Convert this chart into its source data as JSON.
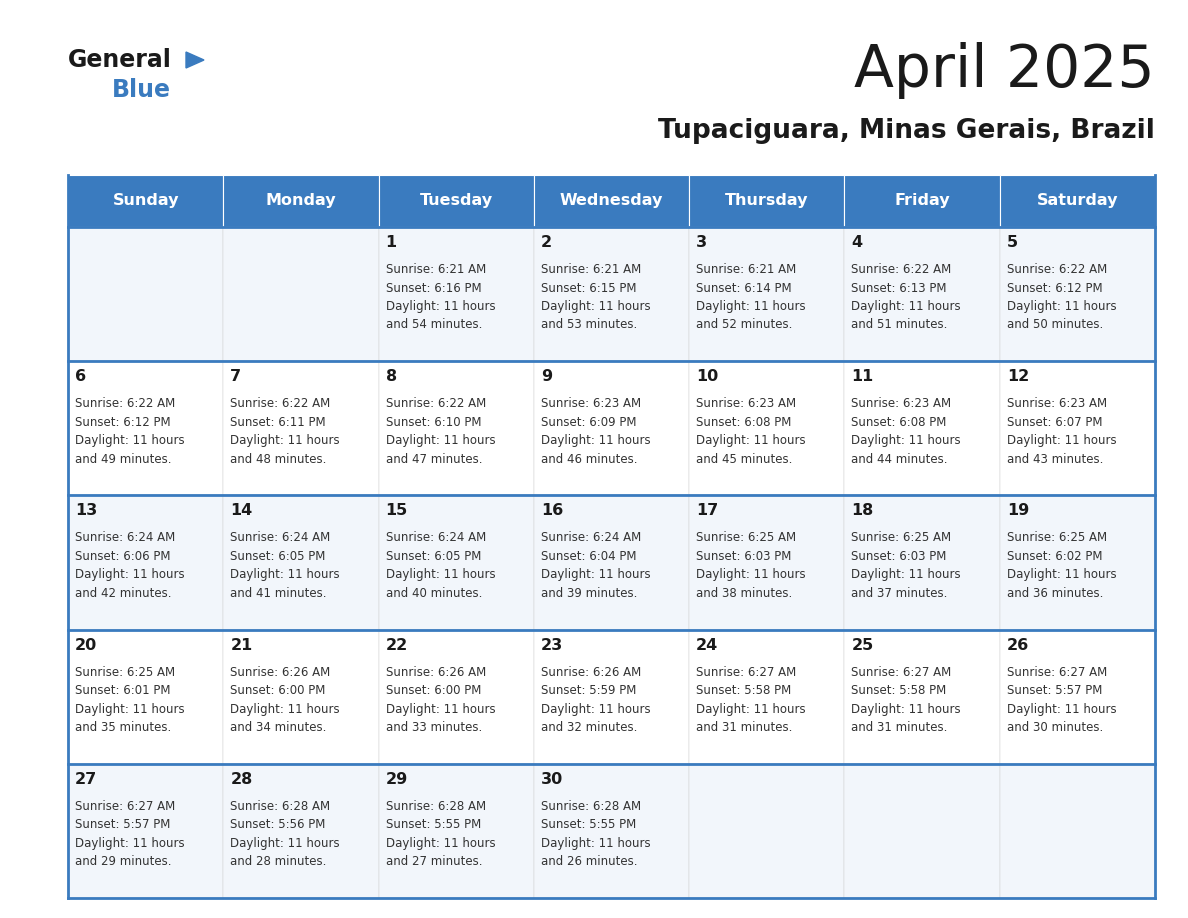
{
  "title": "April 2025",
  "subtitle": "Tupaciguara, Minas Gerais, Brazil",
  "header_color": "#3a7bbf",
  "header_text_color": "#ffffff",
  "border_color": "#3a7bbf",
  "text_color": "#333333",
  "days_of_week": [
    "Sunday",
    "Monday",
    "Tuesday",
    "Wednesday",
    "Thursday",
    "Friday",
    "Saturday"
  ],
  "calendar_data": [
    [
      {
        "day": "",
        "sunrise": "",
        "sunset": "",
        "hours": "",
        "minutes": ""
      },
      {
        "day": "",
        "sunrise": "",
        "sunset": "",
        "hours": "",
        "minutes": ""
      },
      {
        "day": "1",
        "sunrise": "6:21 AM",
        "sunset": "6:16 PM",
        "hours": "11",
        "minutes": "54"
      },
      {
        "day": "2",
        "sunrise": "6:21 AM",
        "sunset": "6:15 PM",
        "hours": "11",
        "minutes": "53"
      },
      {
        "day": "3",
        "sunrise": "6:21 AM",
        "sunset": "6:14 PM",
        "hours": "11",
        "minutes": "52"
      },
      {
        "day": "4",
        "sunrise": "6:22 AM",
        "sunset": "6:13 PM",
        "hours": "11",
        "minutes": "51"
      },
      {
        "day": "5",
        "sunrise": "6:22 AM",
        "sunset": "6:12 PM",
        "hours": "11",
        "minutes": "50"
      }
    ],
    [
      {
        "day": "6",
        "sunrise": "6:22 AM",
        "sunset": "6:12 PM",
        "hours": "11",
        "minutes": "49"
      },
      {
        "day": "7",
        "sunrise": "6:22 AM",
        "sunset": "6:11 PM",
        "hours": "11",
        "minutes": "48"
      },
      {
        "day": "8",
        "sunrise": "6:22 AM",
        "sunset": "6:10 PM",
        "hours": "11",
        "minutes": "47"
      },
      {
        "day": "9",
        "sunrise": "6:23 AM",
        "sunset": "6:09 PM",
        "hours": "11",
        "minutes": "46"
      },
      {
        "day": "10",
        "sunrise": "6:23 AM",
        "sunset": "6:08 PM",
        "hours": "11",
        "minutes": "45"
      },
      {
        "day": "11",
        "sunrise": "6:23 AM",
        "sunset": "6:08 PM",
        "hours": "11",
        "minutes": "44"
      },
      {
        "day": "12",
        "sunrise": "6:23 AM",
        "sunset": "6:07 PM",
        "hours": "11",
        "minutes": "43"
      }
    ],
    [
      {
        "day": "13",
        "sunrise": "6:24 AM",
        "sunset": "6:06 PM",
        "hours": "11",
        "minutes": "42"
      },
      {
        "day": "14",
        "sunrise": "6:24 AM",
        "sunset": "6:05 PM",
        "hours": "11",
        "minutes": "41"
      },
      {
        "day": "15",
        "sunrise": "6:24 AM",
        "sunset": "6:05 PM",
        "hours": "11",
        "minutes": "40"
      },
      {
        "day": "16",
        "sunrise": "6:24 AM",
        "sunset": "6:04 PM",
        "hours": "11",
        "minutes": "39"
      },
      {
        "day": "17",
        "sunrise": "6:25 AM",
        "sunset": "6:03 PM",
        "hours": "11",
        "minutes": "38"
      },
      {
        "day": "18",
        "sunrise": "6:25 AM",
        "sunset": "6:03 PM",
        "hours": "11",
        "minutes": "37"
      },
      {
        "day": "19",
        "sunrise": "6:25 AM",
        "sunset": "6:02 PM",
        "hours": "11",
        "minutes": "36"
      }
    ],
    [
      {
        "day": "20",
        "sunrise": "6:25 AM",
        "sunset": "6:01 PM",
        "hours": "11",
        "minutes": "35"
      },
      {
        "day": "21",
        "sunrise": "6:26 AM",
        "sunset": "6:00 PM",
        "hours": "11",
        "minutes": "34"
      },
      {
        "day": "22",
        "sunrise": "6:26 AM",
        "sunset": "6:00 PM",
        "hours": "11",
        "minutes": "33"
      },
      {
        "day": "23",
        "sunrise": "6:26 AM",
        "sunset": "5:59 PM",
        "hours": "11",
        "minutes": "32"
      },
      {
        "day": "24",
        "sunrise": "6:27 AM",
        "sunset": "5:58 PM",
        "hours": "11",
        "minutes": "31"
      },
      {
        "day": "25",
        "sunrise": "6:27 AM",
        "sunset": "5:58 PM",
        "hours": "11",
        "minutes": "31"
      },
      {
        "day": "26",
        "sunrise": "6:27 AM",
        "sunset": "5:57 PM",
        "hours": "11",
        "minutes": "30"
      }
    ],
    [
      {
        "day": "27",
        "sunrise": "6:27 AM",
        "sunset": "5:57 PM",
        "hours": "11",
        "minutes": "29"
      },
      {
        "day": "28",
        "sunrise": "6:28 AM",
        "sunset": "5:56 PM",
        "hours": "11",
        "minutes": "28"
      },
      {
        "day": "29",
        "sunrise": "6:28 AM",
        "sunset": "5:55 PM",
        "hours": "11",
        "minutes": "27"
      },
      {
        "day": "30",
        "sunrise": "6:28 AM",
        "sunset": "5:55 PM",
        "hours": "11",
        "minutes": "26"
      },
      {
        "day": "",
        "sunrise": "",
        "sunset": "",
        "hours": "",
        "minutes": ""
      },
      {
        "day": "",
        "sunrise": "",
        "sunset": "",
        "hours": "",
        "minutes": ""
      },
      {
        "day": "",
        "sunrise": "",
        "sunset": "",
        "hours": "",
        "minutes": ""
      }
    ]
  ]
}
